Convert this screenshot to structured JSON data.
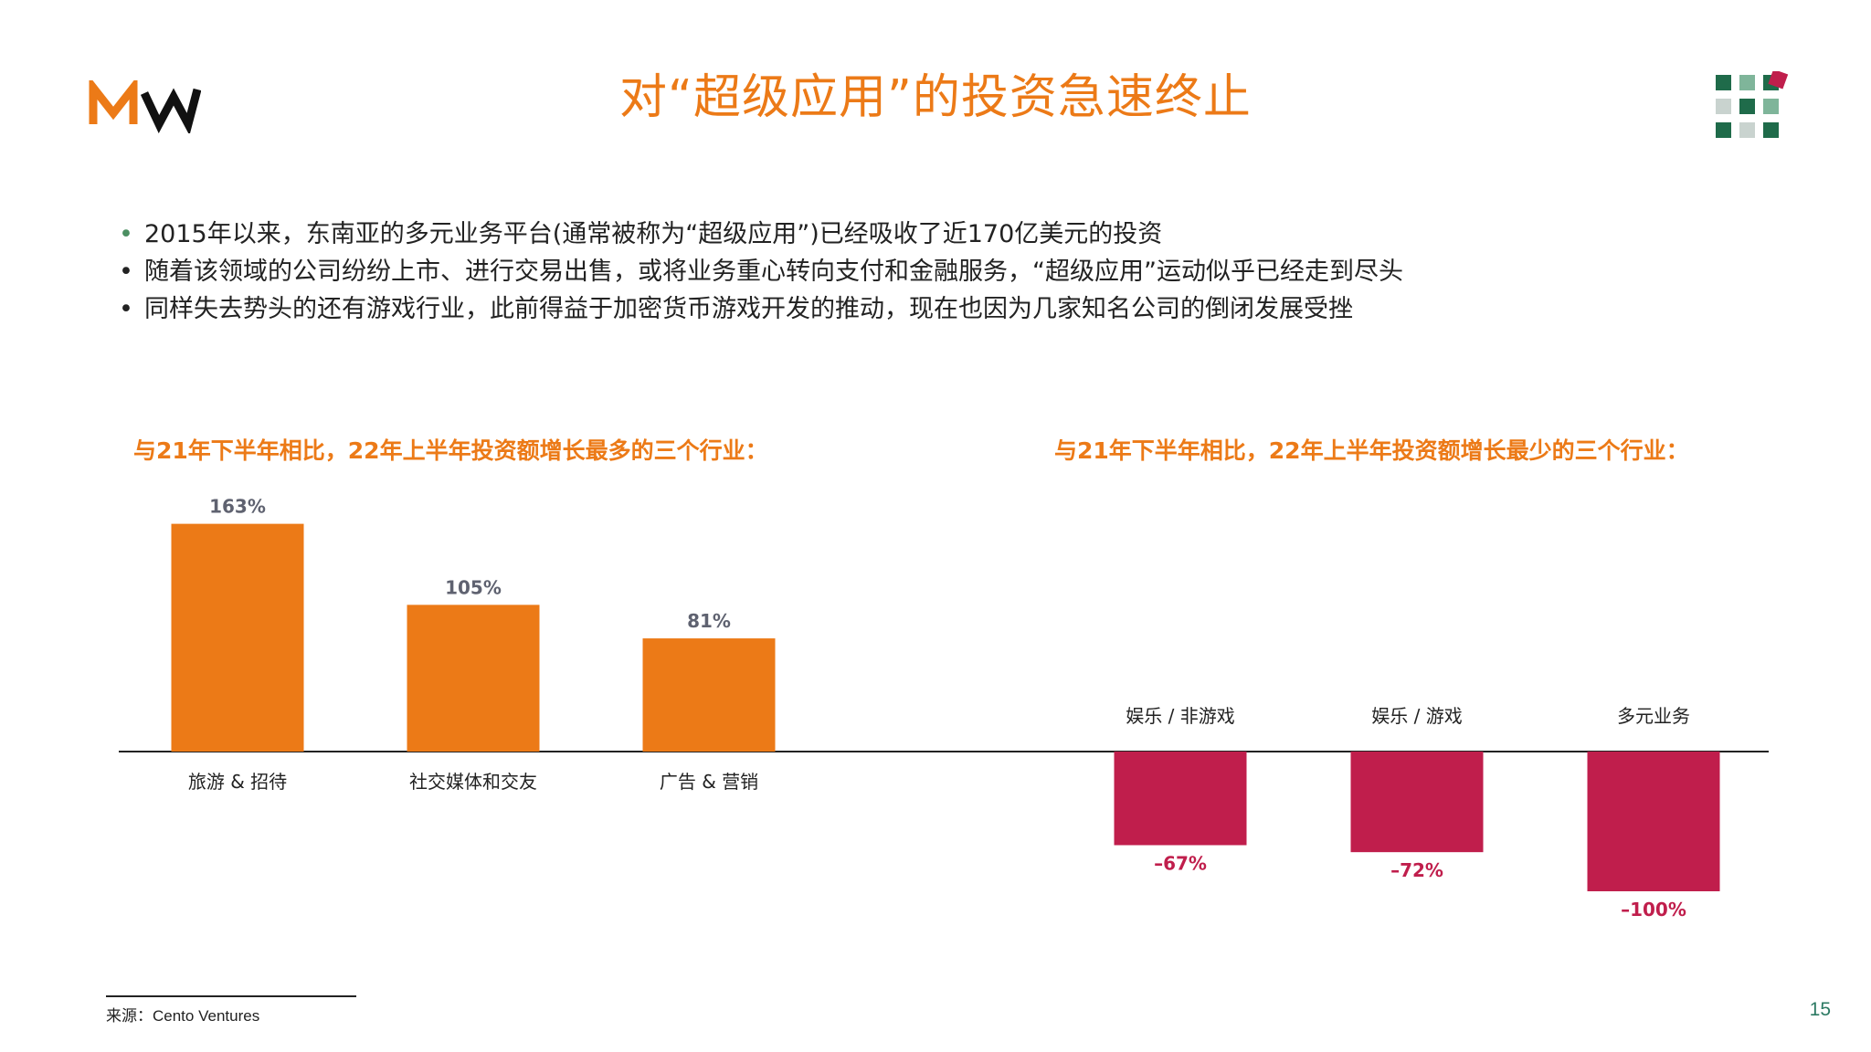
{
  "slide": {
    "title": "对“超级应用”的投资急速终止",
    "bullets": [
      "2015年以来，东南亚的多元业务平台(通常被称为“超级应用”)已经吸收了近170亿美元的投资",
      "随着该领域的公司纷纷上市、进行交易出售，或将业务重心转向支付和金融服务，“超级应用”运动似乎已经走到尽头",
      "同样失去势头的还有游戏行业，此前得益于加密货币游戏开发的推动，现在也因为几家知名公司的倒闭发展受挫"
    ],
    "bullet_symbol": "•",
    "source": "来源：Cento Ventures",
    "page_number": "15",
    "colors": {
      "accent": "#EC7A17",
      "positive_bar": "#EC7A17",
      "negative_bar": "#C01E4C",
      "positive_label": "#5f6270",
      "negative_label": "#C01E4C"
    },
    "icons": {
      "logo": "mw-logo",
      "corner": "square-grid-icon"
    }
  },
  "chart_data": [
    {
      "type": "bar",
      "title": "与21年下半年相比，22年上半年投资额增长最多的三个行业：",
      "categories": [
        "旅游 & 招待",
        "社交媒体和交友",
        "广告 & 营销"
      ],
      "values": [
        163,
        105,
        81
      ],
      "value_labels": [
        "163%",
        "105%",
        "81%"
      ],
      "unit": "%",
      "xlabel": "",
      "ylabel": "",
      "grid": false,
      "color": "#EC7A17"
    },
    {
      "type": "bar",
      "title": "与21年下半年相比，22年上半年投资额增长最少的三个行业：",
      "categories": [
        "娱乐 / 非游戏",
        "娱乐 / 游戏",
        "多元业务"
      ],
      "values": [
        -67,
        -72,
        -100
      ],
      "value_labels": [
        "–67%",
        "–72%",
        "–100%"
      ],
      "unit": "%",
      "xlabel": "",
      "ylabel": "",
      "grid": false,
      "color": "#C01E4C"
    }
  ]
}
